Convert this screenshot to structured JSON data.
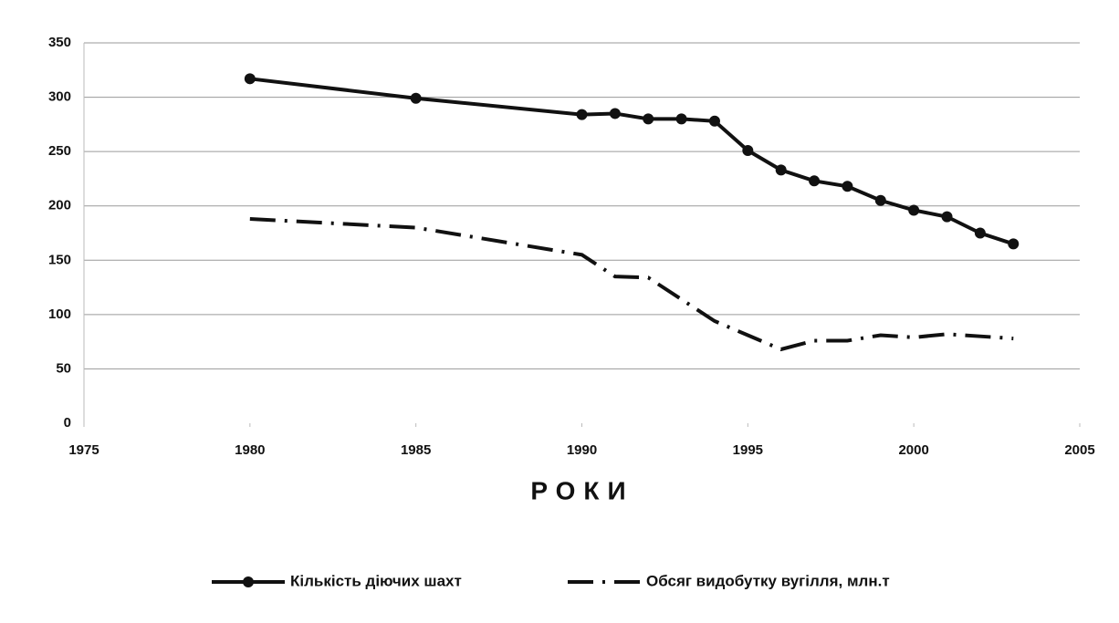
{
  "chart_data": {
    "type": "line",
    "xlabel": "РОКИ",
    "x": [
      1980,
      1985,
      1990,
      1991,
      1992,
      1993,
      1994,
      1995,
      1996,
      1997,
      1998,
      1999,
      2000,
      2001,
      2002,
      2003
    ],
    "series": [
      {
        "name": "Кількість діючих шахт",
        "color": "#111111",
        "line_style": "solid",
        "marker": true,
        "values": [
          317,
          299,
          284,
          285,
          280,
          280,
          278,
          251,
          233,
          223,
          218,
          205,
          196,
          190,
          175,
          165
        ]
      },
      {
        "name": "Обсяг видобутку вугілля, млн.т",
        "color": "#111111",
        "line_style": "dashdot",
        "marker": false,
        "values": [
          188,
          180,
          155,
          135,
          134,
          114,
          94,
          81,
          68,
          76,
          76,
          81,
          79,
          82,
          80,
          78
        ]
      }
    ],
    "xlim": [
      1975,
      2005
    ],
    "xticks": [
      1975,
      1980,
      1985,
      1990,
      1995,
      2000,
      2005
    ],
    "ylim": [
      0,
      350
    ],
    "yticks": [
      0,
      50,
      100,
      150,
      200,
      250,
      300,
      350
    ],
    "grid": true,
    "legend": "bottom"
  }
}
